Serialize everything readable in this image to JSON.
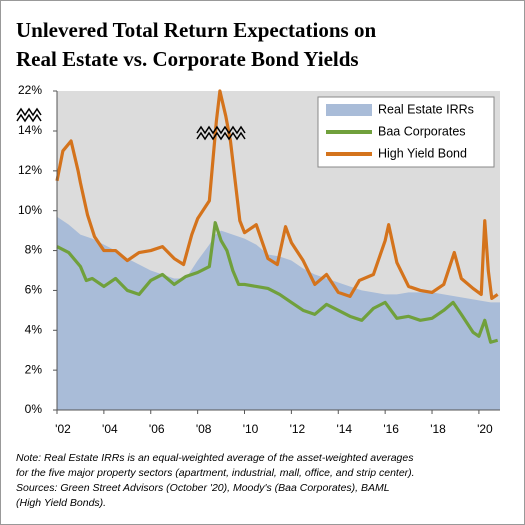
{
  "chart_data": {
    "type": "line",
    "title_lines": [
      "Unlevered Total Return Expectations on",
      "Real Estate vs. Corporate Bond Yields"
    ],
    "notes": [
      "Note: Real Estate IRRs is an equal-weighted average of the asset-weighted averages",
      "for the five major property sectors (apartment, industrial, mall, office, and strip center).",
      "Sources: Green Street Advisors (October '20), Moody's (Baa Corporates), BAML",
      "(High Yield Bonds)."
    ],
    "xlim": [
      2002,
      2020.9
    ],
    "xticks": [
      {
        "value": 2002,
        "label": "'02"
      },
      {
        "value": 2004,
        "label": "'04"
      },
      {
        "value": 2006,
        "label": "'06"
      },
      {
        "value": 2008,
        "label": "'08"
      },
      {
        "value": 2010,
        "label": "'10"
      },
      {
        "value": 2012,
        "label": "'12"
      },
      {
        "value": 2014,
        "label": "'14"
      },
      {
        "value": 2016,
        "label": "'16"
      },
      {
        "value": 2018,
        "label": "'18"
      },
      {
        "value": 2020,
        "label": "'20"
      }
    ],
    "ylim": [
      0,
      22
    ],
    "y_break": 14,
    "yticks": [
      {
        "value": 0,
        "label": "0%"
      },
      {
        "value": 2,
        "label": "2%"
      },
      {
        "value": 4,
        "label": "4%"
      },
      {
        "value": 6,
        "label": "6%"
      },
      {
        "value": 8,
        "label": "8%"
      },
      {
        "value": 10,
        "label": "10%"
      },
      {
        "value": 12,
        "label": "12%"
      },
      {
        "value": 14,
        "label": "14%"
      },
      {
        "value": 22,
        "label": "22%"
      }
    ],
    "legend": "upper right",
    "series": [
      {
        "name": "Real Estate IRRs",
        "kind": "area",
        "color": "#a9bcd8",
        "x": [
          2002,
          2002.5,
          2003,
          2003.5,
          2004,
          2004.5,
          2005,
          2005.5,
          2006,
          2006.5,
          2007,
          2007.5,
          2008,
          2008.5,
          2008.75,
          2009,
          2009.5,
          2010,
          2010.5,
          2011,
          2011.5,
          2012,
          2012.5,
          2013,
          2013.5,
          2014,
          2014.5,
          2015,
          2015.5,
          2016,
          2016.5,
          2017,
          2017.5,
          2018,
          2018.5,
          2019,
          2019.5,
          2020,
          2020.5,
          2020.9
        ],
        "values": [
          9.7,
          9.3,
          8.8,
          8.6,
          8.3,
          8.0,
          7.6,
          7.3,
          7.0,
          6.8,
          6.6,
          6.6,
          7.5,
          8.3,
          8.8,
          9.0,
          8.8,
          8.6,
          8.3,
          7.8,
          7.7,
          7.5,
          7.1,
          6.8,
          6.6,
          6.4,
          6.2,
          6.0,
          5.9,
          5.8,
          5.8,
          5.9,
          5.9,
          5.9,
          5.8,
          5.7,
          5.6,
          5.5,
          5.4,
          5.4
        ]
      },
      {
        "name": "Baa Corporates",
        "kind": "line",
        "color": "#70a03c",
        "x": [
          2002,
          2002.5,
          2003,
          2003.25,
          2003.5,
          2004,
          2004.5,
          2005,
          2005.5,
          2006,
          2006.5,
          2007,
          2007.5,
          2008,
          2008.5,
          2008.75,
          2009,
          2009.25,
          2009.5,
          2009.75,
          2010,
          2010.5,
          2011,
          2011.5,
          2012,
          2012.5,
          2013,
          2013.5,
          2014,
          2014.5,
          2015,
          2015.5,
          2016,
          2016.5,
          2017,
          2017.5,
          2018,
          2018.5,
          2018.9,
          2019.25,
          2019.75,
          2020,
          2020.25,
          2020.5,
          2020.8
        ],
        "values": [
          8.2,
          7.9,
          7.2,
          6.5,
          6.6,
          6.2,
          6.6,
          6.0,
          5.8,
          6.5,
          6.8,
          6.3,
          6.7,
          6.9,
          7.2,
          9.4,
          8.5,
          8.0,
          7.0,
          6.3,
          6.3,
          6.2,
          6.1,
          5.8,
          5.4,
          5.0,
          4.8,
          5.3,
          5.0,
          4.7,
          4.5,
          5.1,
          5.4,
          4.6,
          4.7,
          4.5,
          4.6,
          5.0,
          5.4,
          4.8,
          3.9,
          3.7,
          4.5,
          3.4,
          3.5
        ]
      },
      {
        "name": "High Yield Bond",
        "kind": "line",
        "color": "#d4731c",
        "x": [
          2002,
          2002.25,
          2002.6,
          2002.9,
          2003,
          2003.3,
          2003.6,
          2004,
          2004.5,
          2005,
          2005.5,
          2006,
          2006.5,
          2007,
          2007.4,
          2007.75,
          2008,
          2008.5,
          2008.8,
          2008.95,
          2009.2,
          2009.4,
          2009.6,
          2009.8,
          2010,
          2010.5,
          2011,
          2011.4,
          2011.75,
          2012,
          2012.5,
          2013,
          2013.5,
          2014,
          2014.5,
          2014.9,
          2015.5,
          2016,
          2016.15,
          2016.5,
          2017,
          2017.5,
          2018,
          2018.5,
          2018.95,
          2019.25,
          2019.75,
          2020.1,
          2020.25,
          2020.4,
          2020.55,
          2020.8
        ],
        "values": [
          11.5,
          13.0,
          13.5,
          12.0,
          11.4,
          9.8,
          8.7,
          8.0,
          8.0,
          7.5,
          7.9,
          8.0,
          8.2,
          7.6,
          7.3,
          8.8,
          9.6,
          10.5,
          16.0,
          22.0,
          17.0,
          13.5,
          11.5,
          9.5,
          8.9,
          9.3,
          7.6,
          7.3,
          9.2,
          8.4,
          7.5,
          6.3,
          6.8,
          5.9,
          5.7,
          6.5,
          6.8,
          8.5,
          9.3,
          7.4,
          6.2,
          6.0,
          5.9,
          6.3,
          7.9,
          6.6,
          6.1,
          5.8,
          9.5,
          7.0,
          5.6,
          5.8
        ]
      }
    ]
  }
}
